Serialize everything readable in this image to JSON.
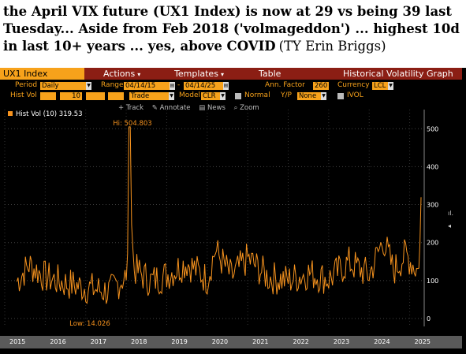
{
  "caption": {
    "line1": "the April VIX future (UX1 Index) is now at 29 vs being 39 last",
    "line2": "Tuesday... Aside from Feb 2018 ('volmageddon') ... highest 10d realized vol",
    "line3": "in last 10+ years ... yes, above COVID",
    "credit": "(TY Erin Briggs)"
  },
  "menubar": {
    "ticker": "UX1 Index",
    "actions": "Actions",
    "templates": "Templates",
    "table": "Table",
    "title": "Historical Volatility Graph"
  },
  "controls": {
    "period_label": "Period",
    "period_value": "Daily",
    "range_label": "Range",
    "range_start": "04/14/15",
    "range_end": "04/14/25",
    "ann_factor_label": "Ann. Factor",
    "ann_factor_value": "260",
    "currency_label": "Currency",
    "currency_value": "LCL",
    "hist_vol_label": "Hist Vol",
    "hist_vol_value": "10",
    "trade_value": "Trade",
    "model_label": "Model",
    "model_value": "CLR",
    "normal_label": "Normal",
    "yp_label": "Y/P",
    "yp_value": "None",
    "ivol_label": "IVOL"
  },
  "toolbar": {
    "track": "+ Track",
    "annotate": "Annotate",
    "news": "News",
    "zoom": "Zoom"
  },
  "icons": [
    "plus-icon",
    "pencil-icon",
    "news-icon",
    "zoom-icon",
    "chevron-down-icon",
    "checkbox-icon"
  ],
  "colors": {
    "accent": "#f7a21b",
    "menubar": "#8b1e14",
    "background": "#000000",
    "line": "#f7931e"
  },
  "chart_data": {
    "type": "line",
    "title": "",
    "legend": "Hist Vol (10) 319.53",
    "last_value": 319.53,
    "high_label": "Hi: 504.803",
    "high_value": 504.803,
    "low_label": "Low: 14.026",
    "low_value": 14.026,
    "ylim": [
      0,
      540
    ],
    "yticks": [
      "500",
      "400",
      "300",
      "200",
      "100",
      "0"
    ],
    "x_labels": [
      "2015",
      "2016",
      "2017",
      "2018",
      "2019",
      "2020",
      "2021",
      "2022",
      "2023",
      "2024",
      "2025"
    ],
    "grid": true,
    "series": [
      {
        "name": "Hist Vol (10)",
        "x": [
          "2015.3",
          "2015.6",
          "2016.0",
          "2016.5",
          "2017.0",
          "2017.6",
          "2018.0",
          "2018.1",
          "2018.2",
          "2018.6",
          "2019.0",
          "2019.5",
          "2020.0",
          "2020.2",
          "2020.6",
          "2021.0",
          "2021.5",
          "2022.0",
          "2022.5",
          "2023.0",
          "2023.5",
          "2024.0",
          "2024.35",
          "2024.6",
          "2024.9",
          "2025.2",
          "2025.28"
        ],
        "values": [
          90,
          170,
          110,
          80,
          60,
          40,
          120,
          504.803,
          150,
          90,
          120,
          180,
          100,
          240,
          110,
          200,
          110,
          95,
          130,
          100,
          180,
          120,
          290,
          140,
          220,
          140,
          319.53
        ]
      }
    ]
  }
}
